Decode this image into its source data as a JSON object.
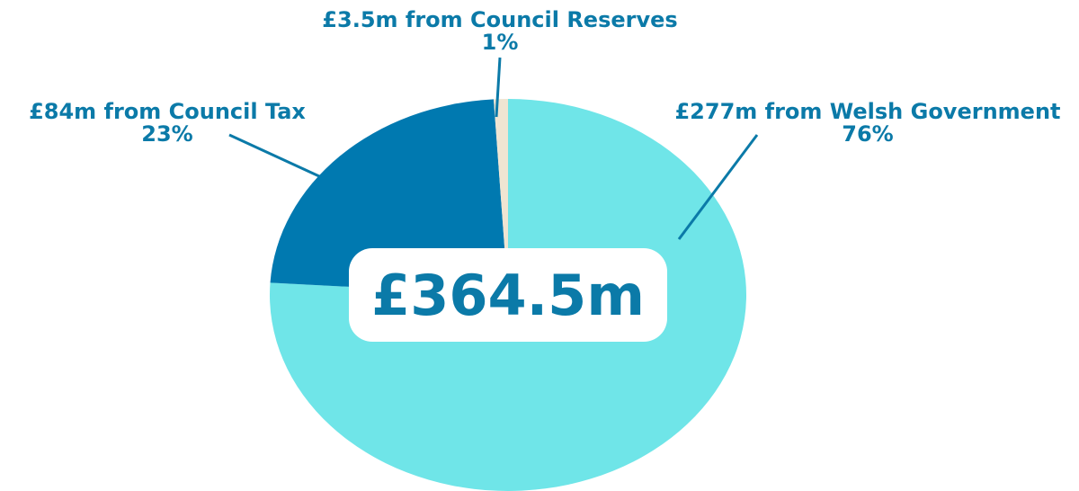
{
  "chart_data": {
    "type": "pie",
    "center_label": "£364.5m",
    "slices": [
      {
        "label": "£277m from Welsh Government",
        "percent_label": "76%",
        "value": 277,
        "color": "#6FE5E8"
      },
      {
        "label": "£84m from Council Tax",
        "percent_label": "23%",
        "value": 84,
        "color": "#0079B0"
      },
      {
        "label": "£3.5m from Council Reserves",
        "percent_label": "1%",
        "value": 3.5,
        "color": "#EFE5D2"
      }
    ],
    "text_color": "#0B7AA8",
    "leader_color": "#0B7AA8",
    "center_box_color": "#FFFFFF"
  }
}
